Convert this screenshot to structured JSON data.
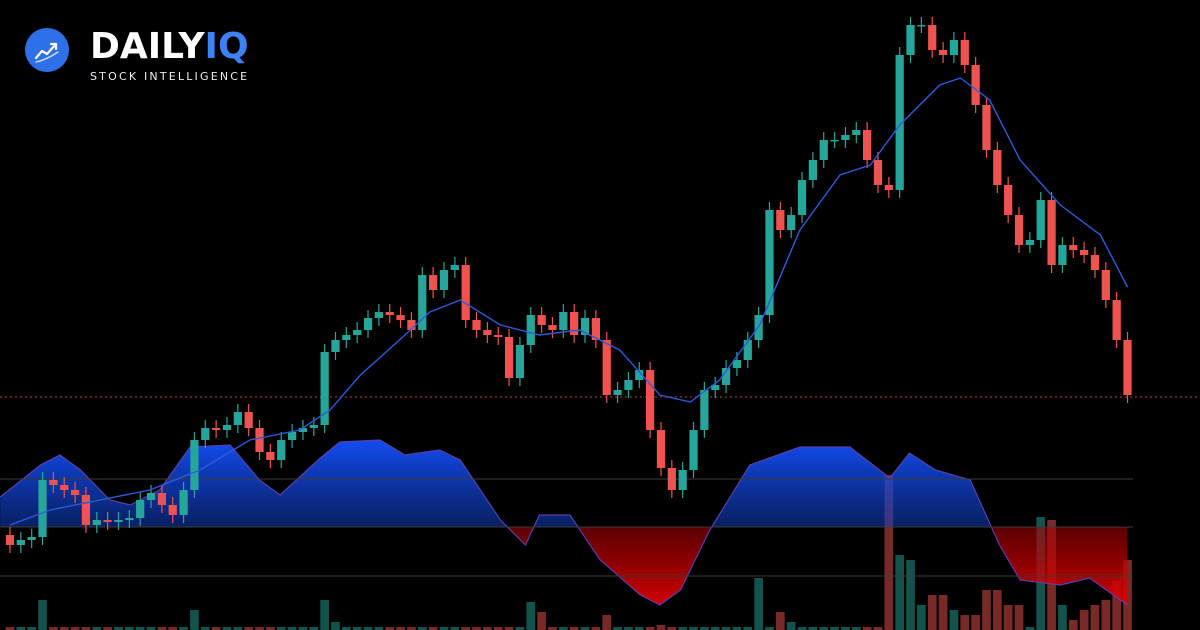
{
  "brand": {
    "name": "DAILY",
    "accent": "IQ",
    "tagline": "STOCK INTELLIGENCE"
  },
  "chart_data": {
    "type": "candlestick",
    "xlim": [
      -0.92,
      109.68
    ],
    "ylim": [
      0,
      630
    ],
    "up_color": "#26a69a",
    "down_color": "#ef5350",
    "price_line": 233,
    "open": [
      95,
      85,
      90,
      93,
      150,
      145,
      140,
      135,
      105,
      110,
      108,
      110,
      112,
      130,
      137,
      125,
      115,
      140,
      190,
      202,
      200,
      205,
      218,
      202,
      178,
      170,
      190,
      198,
      202,
      205,
      278,
      290,
      295,
      300,
      312,
      318,
      315,
      310,
      300,
      355,
      340,
      360,
      365,
      310,
      300,
      295,
      293,
      252,
      285,
      315,
      305,
      300,
      318,
      295,
      312,
      290,
      235,
      240,
      250,
      260,
      200,
      162,
      140,
      160,
      200,
      240,
      245,
      262,
      270,
      290,
      315,
      420,
      400,
      415,
      450,
      470,
      490,
      490,
      495,
      500,
      470,
      445,
      440,
      575,
      605,
      605,
      580,
      575,
      590,
      565,
      525,
      480,
      445,
      415,
      385,
      390,
      430,
      365,
      385,
      380,
      375,
      360,
      330,
      290
    ],
    "high": [
      103,
      98,
      101,
      158,
      158,
      153,
      148,
      143,
      118,
      118,
      118,
      120,
      138,
      145,
      145,
      133,
      148,
      198,
      210,
      210,
      213,
      226,
      226,
      210,
      186,
      198,
      206,
      210,
      213,
      286,
      298,
      303,
      308,
      320,
      326,
      326,
      323,
      318,
      363,
      363,
      368,
      373,
      373,
      318,
      308,
      303,
      301,
      293,
      323,
      323,
      313,
      326,
      326,
      320,
      320,
      298,
      248,
      258,
      268,
      268,
      208,
      170,
      168,
      208,
      248,
      253,
      270,
      278,
      298,
      323,
      428,
      428,
      423,
      458,
      478,
      498,
      498,
      503,
      508,
      508,
      478,
      453,
      583,
      613,
      613,
      613,
      588,
      598,
      598,
      573,
      533,
      488,
      453,
      423,
      398,
      438,
      438,
      393,
      393,
      388,
      383,
      368,
      338,
      298
    ],
    "low": [
      77,
      77,
      82,
      85,
      137,
      132,
      127,
      97,
      97,
      100,
      100,
      102,
      104,
      122,
      117,
      107,
      107,
      132,
      182,
      192,
      192,
      197,
      194,
      170,
      162,
      162,
      182,
      190,
      194,
      197,
      270,
      282,
      287,
      292,
      304,
      307,
      302,
      292,
      292,
      332,
      332,
      352,
      302,
      292,
      287,
      285,
      244,
      244,
      277,
      297,
      292,
      292,
      287,
      287,
      282,
      227,
      227,
      232,
      242,
      192,
      154,
      132,
      132,
      152,
      192,
      232,
      237,
      254,
      262,
      282,
      307,
      392,
      392,
      407,
      442,
      462,
      482,
      482,
      487,
      462,
      437,
      432,
      432,
      567,
      597,
      572,
      567,
      567,
      557,
      517,
      472,
      437,
      407,
      377,
      377,
      382,
      357,
      357,
      372,
      367,
      352,
      322,
      282,
      227
    ],
    "close": [
      85,
      90,
      93,
      150,
      145,
      140,
      135,
      105,
      110,
      108,
      110,
      112,
      130,
      137,
      125,
      115,
      140,
      190,
      202,
      200,
      205,
      218,
      202,
      178,
      170,
      190,
      198,
      202,
      205,
      278,
      290,
      295,
      300,
      312,
      318,
      315,
      310,
      300,
      355,
      340,
      360,
      365,
      310,
      300,
      295,
      293,
      252,
      285,
      315,
      305,
      300,
      318,
      295,
      312,
      290,
      235,
      240,
      250,
      260,
      200,
      162,
      140,
      160,
      200,
      240,
      245,
      262,
      270,
      290,
      315,
      420,
      400,
      415,
      450,
      470,
      490,
      490,
      495,
      500,
      470,
      445,
      440,
      575,
      605,
      605,
      580,
      575,
      590,
      565,
      525,
      480,
      445,
      415,
      385,
      390,
      430,
      365,
      385,
      380,
      375,
      360,
      330,
      290,
      235
    ],
    "ma": {
      "color": "#2d5bd8",
      "x": [
        0.0,
        3.7,
        8.3,
        12.9,
        17.5,
        22.1,
        26.7,
        29.5,
        32.3,
        35.9,
        38.7,
        41.5,
        45.2,
        48.8,
        52.5,
        56.2,
        59.9,
        62.7,
        65.4,
        69.1,
        72.8,
        76.5,
        79.3,
        82.0,
        85.7,
        87.6,
        90.3,
        93.1,
        96.8,
        100.5,
        103.0
      ],
      "values": [
        105,
        120,
        130,
        140,
        160,
        190,
        200,
        220,
        255,
        290,
        318,
        330,
        305,
        295,
        300,
        280,
        235,
        228,
        250,
        305,
        400,
        455,
        465,
        505,
        545,
        552,
        530,
        470,
        425,
        395,
        343
      ]
    },
    "oscillator": {
      "ylim": [
        -103,
        527
      ],
      "levels": [
        48,
        0,
        -49
      ],
      "up_color": "#1450ff",
      "down_color": "#e00000",
      "line_color": "#5a3fa8",
      "x": [
        -0.9,
        2.8,
        4.6,
        6.5,
        9.2,
        11.1,
        13.8,
        16.6,
        20.3,
        23.0,
        24.9,
        28.6,
        30.4,
        34.1,
        36.4,
        39.6,
        41.5,
        45.2,
        47.5,
        48.8,
        51.6,
        54.4,
        58.1,
        59.9,
        61.8,
        64.5,
        68.2,
        72.8,
        77.4,
        81.1,
        82.9,
        85.3,
        88.5,
        91.2,
        93.1,
        96.8,
        99.5,
        103.0
      ],
      "values": [
        30,
        62,
        72,
        57,
        27,
        22,
        37,
        80,
        82,
        47,
        32,
        69,
        85,
        87,
        72,
        77,
        67,
        7,
        -18,
        12,
        12,
        -33,
        -68,
        -78,
        -63,
        -3,
        62,
        80,
        80,
        49,
        74,
        57,
        47,
        -18,
        -53,
        -58,
        -51,
        -78
      ]
    },
    "volume": {
      "ylim": [
        0,
        630
      ],
      "values": [
        3,
        3,
        3,
        30,
        3,
        3,
        3,
        3,
        3,
        3,
        3,
        3,
        3,
        3,
        3,
        3,
        3,
        20,
        3,
        3,
        3,
        3,
        3,
        3,
        3,
        3,
        3,
        3,
        3,
        30,
        8,
        3,
        3,
        3,
        3,
        3,
        3,
        3,
        3,
        3,
        3,
        3,
        3,
        3,
        3,
        3,
        3,
        3,
        28,
        18,
        3,
        3,
        3,
        3,
        3,
        15,
        3,
        3,
        3,
        3,
        5,
        3,
        3,
        3,
        3,
        3,
        3,
        3,
        3,
        52,
        3,
        18,
        8,
        3,
        3,
        3,
        3,
        3,
        3,
        3,
        3,
        155,
        75,
        70,
        25,
        35,
        35,
        20,
        15,
        15,
        40,
        40,
        25,
        25,
        3,
        113,
        110,
        25,
        10,
        20,
        25,
        30,
        50,
        70
      ]
    }
  }
}
